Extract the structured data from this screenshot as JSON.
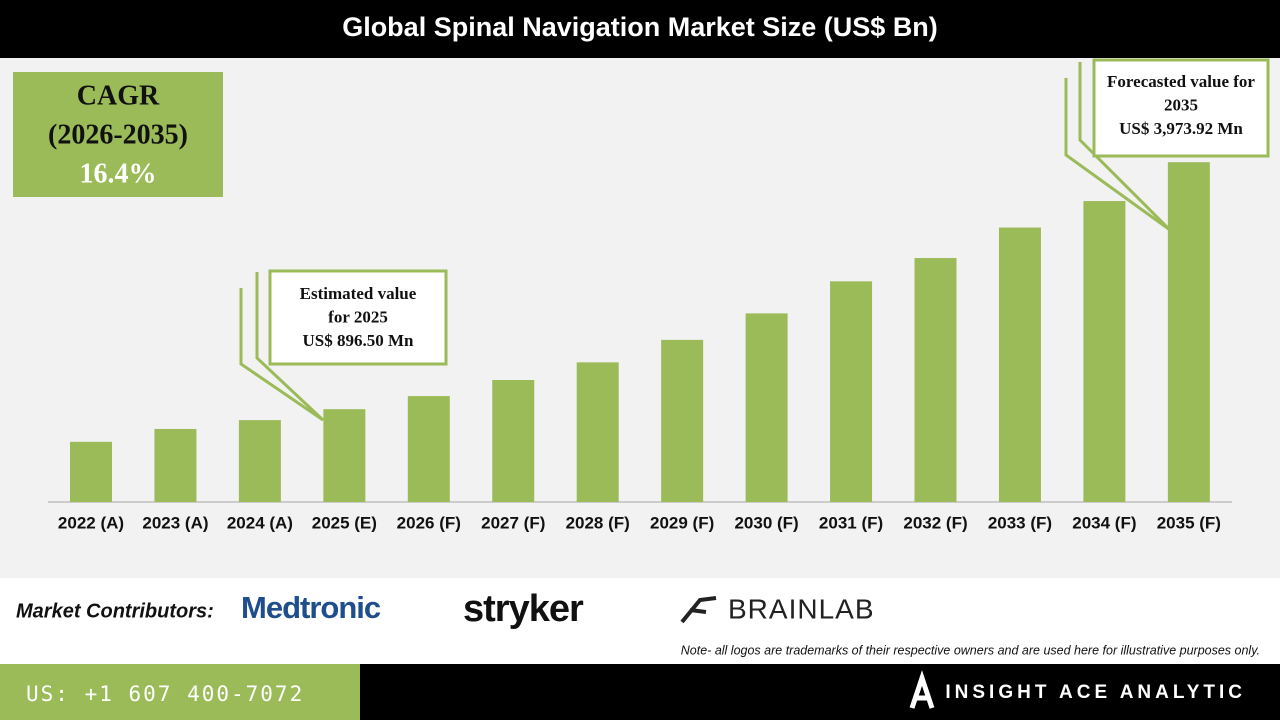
{
  "chart_data": {
    "type": "bar",
    "title": "Global Spinal Navigation Market Size (US$ Bn)",
    "categories": [
      "2022 (A)",
      "2023 (A)",
      "2024 (A)",
      "2025 (E)",
      "2026 (F)",
      "2027 (F)",
      "2028 (F)",
      "2029 (F)",
      "2030 (F)",
      "2031 (F)",
      "2032 (F)",
      "2033 (F)",
      "2034 (F)",
      "2035 (F)"
    ],
    "values": [
      0.49,
      0.65,
      0.76,
      0.8965,
      1.06,
      1.26,
      1.48,
      1.76,
      2.09,
      2.49,
      2.78,
      3.16,
      3.49,
      3.97392
    ],
    "color": "#9bbb59",
    "ylim": [
      -0.26,
      4.5
    ],
    "cagr": {
      "label": "CAGR",
      "period": "(2026-2035)",
      "value": "16.4%"
    },
    "annotations": [
      {
        "lines": [
          "Estimated value",
          "for 2025",
          "US$ 896.50 Mn"
        ]
      },
      {
        "lines": [
          "Forecasted value for",
          "2035",
          "US$ 3,973.92 Mn"
        ]
      }
    ]
  },
  "contributors": {
    "label": "Market Contributors:",
    "logos": [
      "Medtronic",
      "stryker",
      "BRAINLAB"
    ],
    "note": "Note- all logos are trademarks of their respective owners and are used here for illustrative purposes only."
  },
  "footer": {
    "phone": "US: +1 607 400-7072",
    "brand": "INSIGHT ACE ANALYTIC"
  }
}
